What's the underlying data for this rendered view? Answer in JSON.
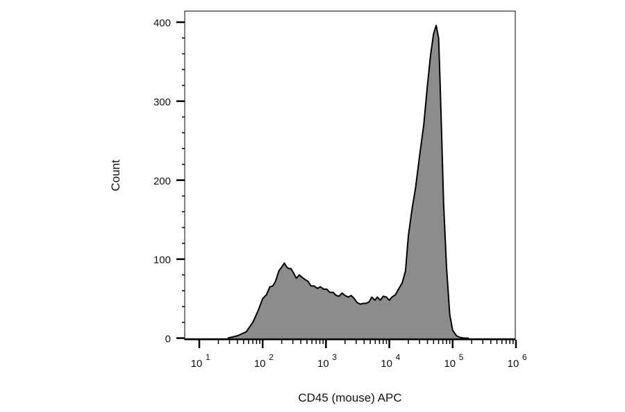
{
  "chart_data": {
    "type": "area",
    "title": "",
    "xlabel": "CD45 (mouse) APC",
    "ylabel": "Count",
    "x_scale": "log",
    "xlim": [
      10,
      1000000
    ],
    "ylim": [
      0,
      420
    ],
    "grid": false,
    "legend": "none",
    "fill_color": "#8c8c8c",
    "line_color": "#000000",
    "y_ticks": [
      0,
      100,
      200,
      300,
      400
    ],
    "y_tick_labels": [
      "0",
      "100",
      "200",
      "300",
      "400"
    ],
    "x_ticks": [
      {
        "base": "10",
        "exp": "1",
        "value": 10
      },
      {
        "base": "10",
        "exp": "2",
        "value": 100
      },
      {
        "base": "10",
        "exp": "3",
        "value": 1000
      },
      {
        "base": "10",
        "exp": "4",
        "value": 10000
      },
      {
        "base": "10",
        "exp": "5",
        "value": 100000
      },
      {
        "base": "10",
        "exp": "6",
        "value": 1000000
      }
    ],
    "series": [
      {
        "x": [
          28,
          40,
          55,
          70,
          85,
          100,
          115,
          130,
          145,
          160,
          180,
          200,
          220,
          240,
          260,
          280,
          310,
          340,
          380,
          420,
          470,
          520,
          580,
          650,
          730,
          820,
          920,
          1030,
          1150,
          1300,
          1450,
          1600,
          1800,
          2000,
          2250,
          2500,
          2800,
          3100,
          3500,
          3900,
          4300,
          4800,
          5300,
          5900,
          6500,
          7200,
          8000,
          9000,
          10000,
          11000,
          12500,
          14000,
          16000,
          18000,
          20000,
          23000,
          26000,
          30000,
          35000,
          40000,
          45000,
          50000,
          55000,
          60000,
          63000,
          67000,
          72000,
          80000,
          90000,
          100000,
          115000,
          130000,
          150000,
          180000
        ],
        "y": [
          0,
          3,
          8,
          20,
          35,
          50,
          55,
          65,
          66,
          72,
          85,
          90,
          95,
          90,
          88,
          88,
          82,
          76,
          80,
          77,
          74,
          72,
          66,
          66,
          63,
          65,
          62,
          62,
          58,
          58,
          54,
          53,
          57,
          54,
          52,
          54,
          50,
          45,
          43,
          44,
          44,
          46,
          52,
          48,
          52,
          48,
          53,
          52,
          48,
          52,
          55,
          62,
          70,
          85,
          130,
          165,
          190,
          230,
          270,
          320,
          360,
          385,
          396,
          380,
          330,
          260,
          170,
          90,
          30,
          10,
          3,
          1,
          0,
          0
        ]
      }
    ]
  }
}
